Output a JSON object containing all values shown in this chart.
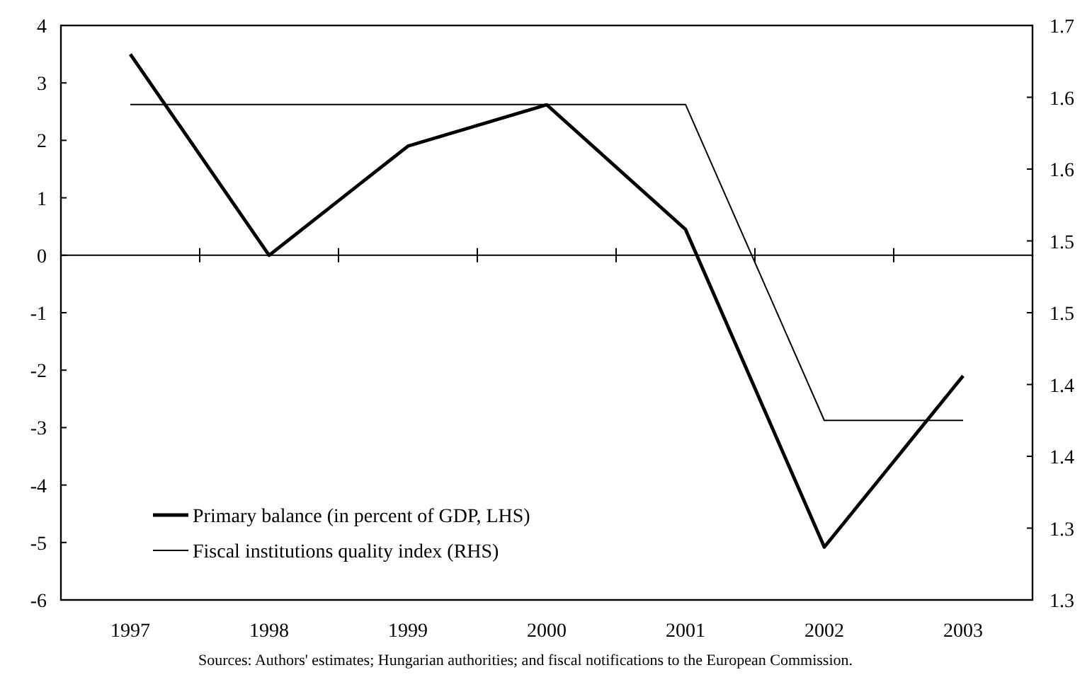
{
  "chart_data": {
    "type": "line",
    "categories": [
      "1997",
      "1998",
      "1999",
      "2000",
      "2001",
      "2002",
      "2003"
    ],
    "series": [
      {
        "name": "Primary balance (in percent of GDP, LHS)",
        "color": "#000000",
        "values": [
          3.5,
          0,
          1.9,
          2.62,
          0.45,
          -5.08,
          -2.1
        ]
      },
      {
        "name": "Fiscal institutions quality index (RHS)",
        "color": "#000000",
        "axis": "y2",
        "values": [
          1.645,
          1.645,
          1.645,
          1.645,
          1.645,
          1.425,
          1.425
        ]
      }
    ],
    "ylim": [
      -6,
      4
    ],
    "yticks": [
      -6,
      -5,
      -4,
      -3,
      -2,
      -1,
      0,
      1,
      2,
      3,
      4
    ],
    "y2lim": [
      1.3,
      1.7
    ],
    "y2ticks": [
      1.3,
      {
        "value": 1.35,
        "label": "1.3"
      },
      {
        "value": 1.4,
        "label": "1.4"
      },
      {
        "value": 1.45,
        "label": "1.4"
      },
      {
        "value": 1.5,
        "label": "1.5"
      },
      {
        "value": 1.55,
        "label": "1.5"
      },
      {
        "value": 1.6,
        "label": "1.6"
      },
      {
        "value": 1.65,
        "label": "1.6"
      },
      1.7
    ],
    "legend": "bottom left",
    "marker": "none",
    "line_style": "solid",
    "annotations": [
      "Sources: Authors' estimates; Hungarian authorities; and fiscal notifications to the European Commission."
    ]
  }
}
